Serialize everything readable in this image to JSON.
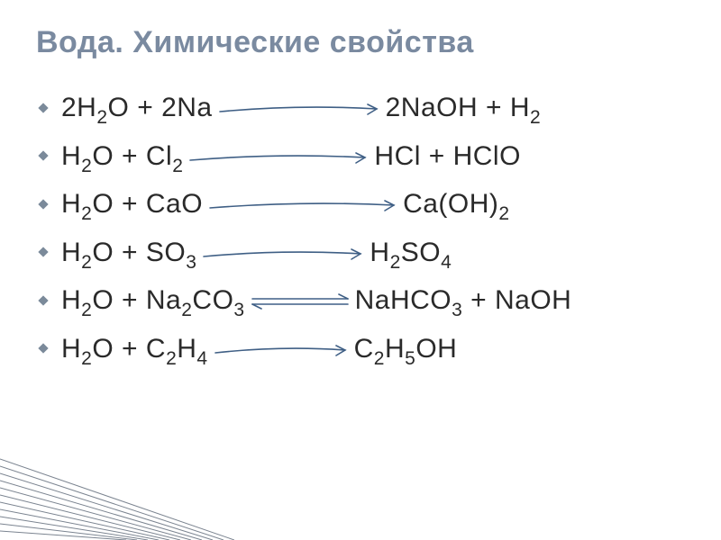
{
  "title_text": "Вода. Химические свойства",
  "title_color": "#7a8aa0",
  "body_color": "#2a2a2a",
  "background_color": "#ffffff",
  "arrow_stroke": "#3f5f85",
  "arrow_stroke_width": 1.6,
  "corner_stroke": "#7b8490",
  "equations": [
    {
      "lhs": "2H₂O + 2Na",
      "rhs": "2NaOH + H₂",
      "arrow_width": 180,
      "arrow_type": "single"
    },
    {
      "lhs": "H₂O + Cl₂",
      "rhs": "HCl + HClO",
      "arrow_width": 200,
      "arrow_type": "single"
    },
    {
      "lhs": "H₂O + CaO",
      "rhs": "Ca(OH)₂",
      "arrow_width": 210,
      "arrow_type": "single"
    },
    {
      "lhs": "H₂O + SO₃",
      "rhs": "H₂SO₄",
      "arrow_width": 180,
      "arrow_type": "single"
    },
    {
      "lhs": "H₂O + Na₂CO₃",
      "rhs": "NaHCO₃ + NaOH",
      "arrow_width": 110,
      "arrow_type": "double"
    },
    {
      "lhs": "H₂O + C₂H₄",
      "rhs": "C₂H₅OH",
      "arrow_width": 150,
      "arrow_type": "single"
    }
  ]
}
